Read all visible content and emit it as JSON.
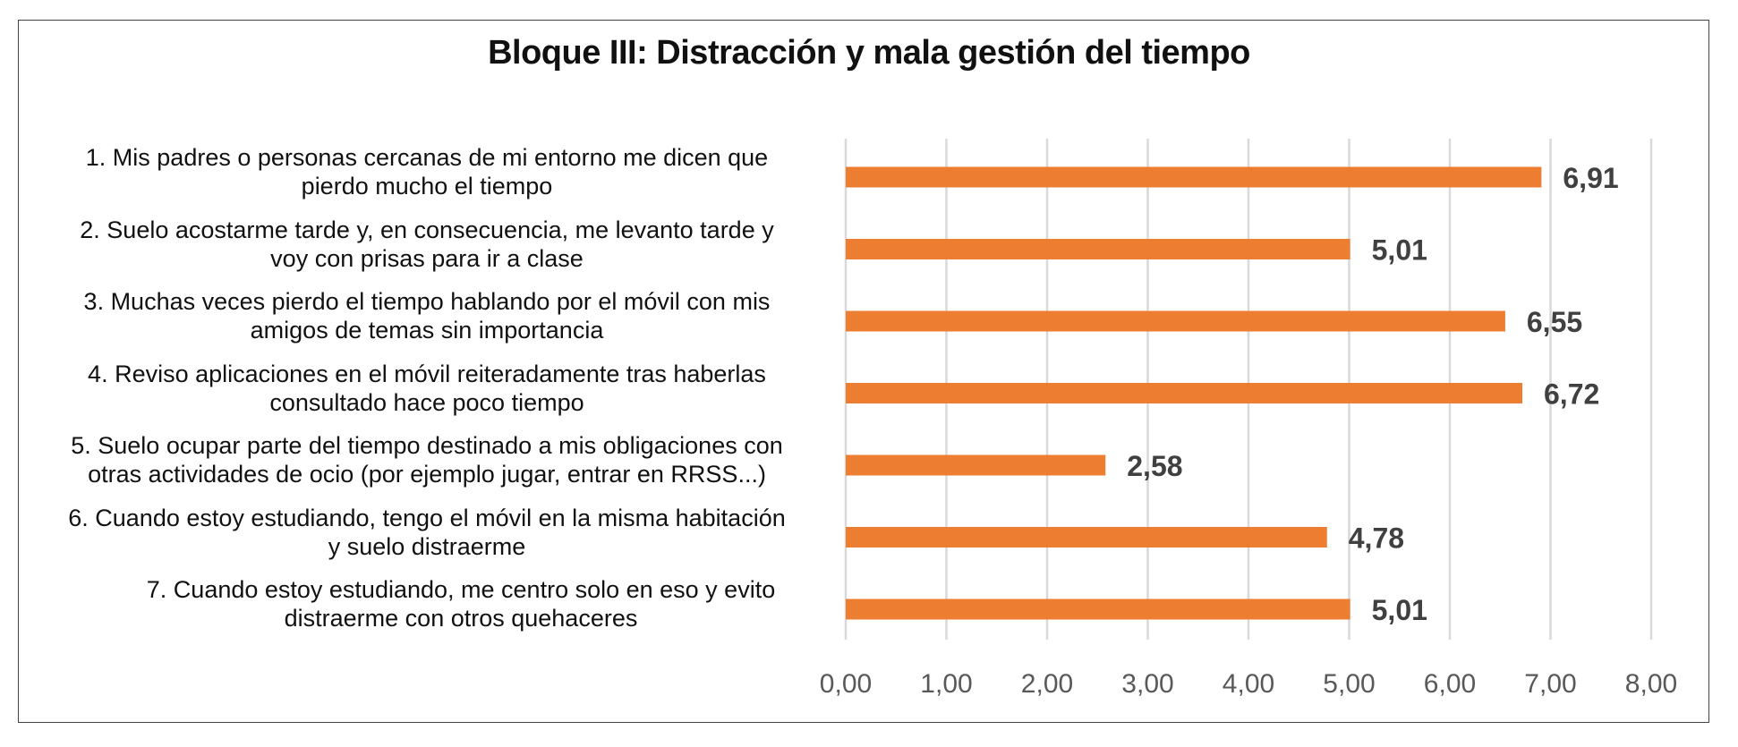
{
  "chart_data": {
    "type": "bar",
    "orientation": "horizontal",
    "title": "Bloque III: Distracción y mala gestión del tiempo",
    "categories": [
      "1. Mis padres o personas cercanas de mi entorno me dicen que pierdo mucho el tiempo",
      "2. Suelo acostarme tarde y, en consecuencia, me levanto tarde y voy con prisas para ir a clase",
      "3. Muchas veces pierdo el tiempo hablando por el móvil con mis amigos de temas sin importancia",
      "4. Reviso aplicaciones en el móvil reiteradamente tras haberlas consultado hace poco tiempo",
      "5. Suelo ocupar parte del tiempo destinado a mis obligaciones con otras actividades de ocio (por ejemplo jugar, entrar en RRSS...)",
      "6. Cuando estoy estudiando, tengo el móvil en la misma habitación y suelo distraerme",
      "7. Cuando estoy estudiando, me centro solo en eso y evito distraerme con otros quehaceres"
    ],
    "category_lines": [
      [
        "1. Mis padres o personas cercanas de mi entorno me dicen que",
        "pierdo mucho el tiempo"
      ],
      [
        "2. Suelo acostarme tarde y, en consecuencia, me levanto tarde y",
        "voy con prisas para ir a clase"
      ],
      [
        "3. Muchas veces pierdo el tiempo hablando por el móvil con mis",
        "amigos de temas sin importancia"
      ],
      [
        "4. Reviso aplicaciones en el móvil reiteradamente tras haberlas",
        "consultado hace poco tiempo"
      ],
      [
        "5. Suelo ocupar parte del tiempo destinado a mis obligaciones con",
        "otras actividades de ocio (por ejemplo jugar, entrar en RRSS...)"
      ],
      [
        "6. Cuando estoy estudiando, tengo el móvil en la misma habitación",
        "y suelo distraerme"
      ],
      [
        "7. Cuando estoy estudiando, me centro solo en eso y evito",
        "distraerme con otros quehaceres"
      ]
    ],
    "values": [
      6.91,
      5.01,
      6.55,
      6.72,
      2.58,
      4.78,
      5.01
    ],
    "data_labels": [
      "6,91",
      "5,01",
      "6,55",
      "6,72",
      "2,58",
      "4,78",
      "5,01"
    ],
    "xlim": [
      0,
      8
    ],
    "x_ticks": [
      "0,00",
      "1,00",
      "2,00",
      "3,00",
      "4,00",
      "5,00",
      "6,00",
      "7,00",
      "8,00"
    ],
    "grid": "vertical",
    "legend": "none",
    "colors": {
      "bar": "#ED7D31",
      "grid": "#D9D9D9",
      "label": "#404040",
      "tick": "#595959"
    }
  }
}
